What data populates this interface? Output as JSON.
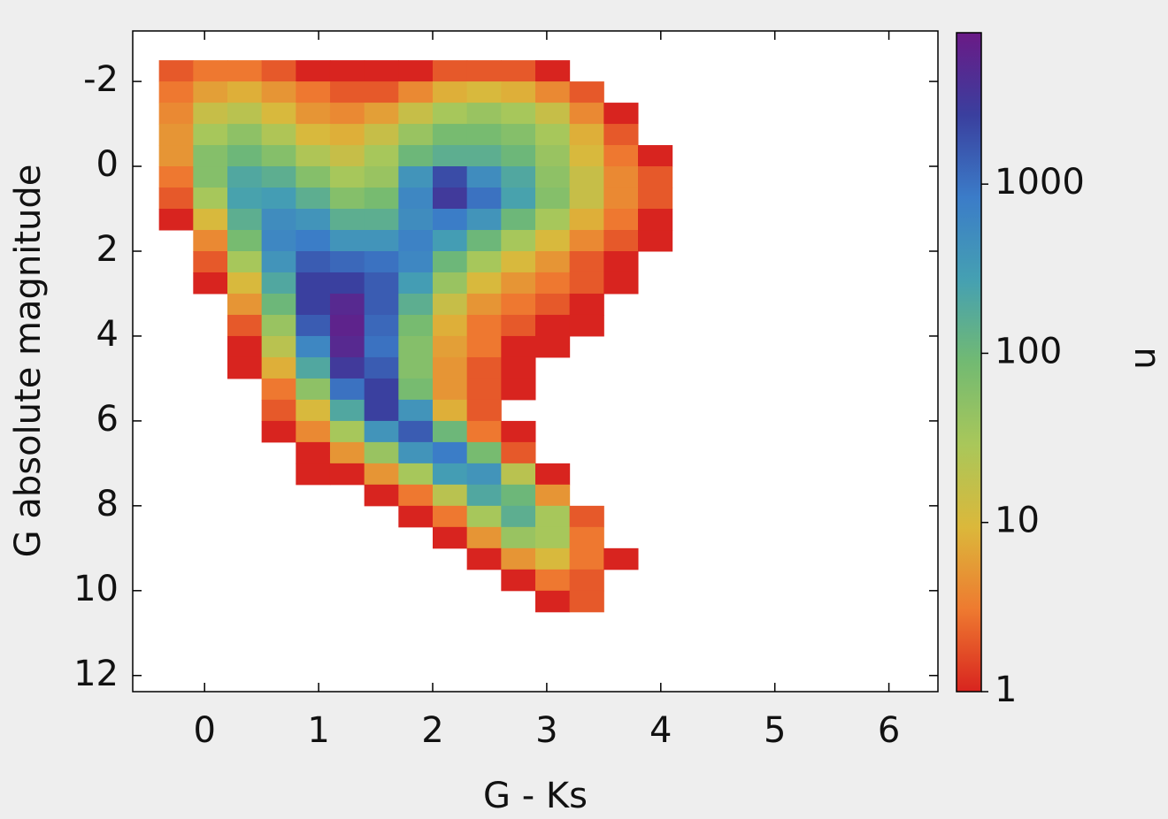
{
  "chart_data": {
    "type": "heatmap",
    "xlabel": "G - Ks",
    "ylabel": "G absolute magnitude",
    "colorbar_label": "n",
    "xlim": [
      -0.63,
      6.43
    ],
    "ylim": [
      -3.19,
      12.38
    ],
    "y_inverted": true,
    "xticks": [
      0,
      1,
      2,
      3,
      4,
      5,
      6
    ],
    "yticks": [
      -2,
      0,
      2,
      4,
      6,
      8,
      10,
      12
    ],
    "zlim": [
      1,
      7850
    ],
    "zscale": "log",
    "zticks": [
      1,
      10,
      100,
      1000
    ],
    "colormap": [
      "#d8241f",
      "#ee7a30",
      "#dbb83b",
      "#a9c75a",
      "#72ba72",
      "#45a0b2",
      "#3b7cc8",
      "#3a3f9e",
      "#6a1a86"
    ],
    "xbins": [
      -0.4,
      -0.1,
      0.2,
      0.5,
      0.8,
      1.1,
      1.4,
      1.7,
      2.0,
      2.3,
      2.6,
      2.9,
      3.2,
      3.5,
      3.8,
      4.1
    ],
    "ybins": [
      -2.5,
      -2.0,
      -1.5,
      -1.0,
      -0.5,
      0.0,
      0.5,
      1.0,
      1.5,
      2.0,
      2.5,
      3.0,
      3.5,
      4.0,
      4.5,
      5.0,
      5.5,
      6.0,
      6.5,
      7.0,
      7.5,
      8.0,
      8.5,
      9.0,
      9.5,
      10.0,
      10.5
    ],
    "counts": [
      [
        2,
        3,
        3,
        2,
        1,
        1,
        1,
        1,
        2,
        2,
        2,
        1,
        null,
        null,
        null
      ],
      [
        3,
        6,
        8,
        5,
        3,
        2,
        2,
        4,
        8,
        10,
        8,
        4,
        2,
        null,
        null
      ],
      [
        4,
        15,
        20,
        10,
        5,
        4,
        6,
        15,
        30,
        40,
        30,
        15,
        4,
        1,
        null
      ],
      [
        5,
        30,
        50,
        25,
        10,
        8,
        15,
        40,
        80,
        80,
        60,
        30,
        8,
        2,
        null
      ],
      [
        5,
        60,
        100,
        60,
        25,
        15,
        30,
        100,
        150,
        150,
        100,
        40,
        10,
        3,
        1
      ],
      [
        3,
        60,
        200,
        150,
        60,
        30,
        40,
        400,
        2000,
        500,
        200,
        50,
        15,
        4,
        2
      ],
      [
        2,
        30,
        250,
        300,
        150,
        60,
        80,
        600,
        3000,
        1000,
        250,
        60,
        15,
        4,
        2
      ],
      [
        1,
        10,
        150,
        500,
        400,
        150,
        150,
        500,
        800,
        400,
        100,
        30,
        8,
        3,
        1
      ],
      [
        null,
        4,
        80,
        600,
        800,
        400,
        400,
        700,
        300,
        100,
        30,
        10,
        4,
        2,
        1
      ],
      [
        null,
        2,
        30,
        400,
        1500,
        1200,
        1000,
        600,
        100,
        30,
        10,
        5,
        2,
        1,
        null
      ],
      [
        null,
        1,
        10,
        200,
        2500,
        2500,
        1500,
        300,
        40,
        10,
        5,
        3,
        2,
        1,
        null
      ],
      [
        null,
        null,
        5,
        100,
        2500,
        5000,
        1500,
        150,
        15,
        5,
        3,
        2,
        1,
        null,
        null
      ],
      [
        null,
        null,
        2,
        40,
        1500,
        6000,
        1200,
        80,
        8,
        3,
        2,
        1,
        1,
        null,
        null
      ],
      [
        null,
        null,
        1,
        20,
        600,
        5000,
        1000,
        60,
        6,
        3,
        1,
        1,
        null,
        null,
        null
      ],
      [
        null,
        null,
        1,
        8,
        200,
        3000,
        1500,
        60,
        5,
        2,
        1,
        null,
        null,
        null,
        null
      ],
      [
        null,
        null,
        null,
        3,
        50,
        1000,
        2500,
        80,
        5,
        2,
        1,
        null,
        null,
        null,
        null
      ],
      [
        null,
        null,
        null,
        2,
        10,
        200,
        2500,
        400,
        8,
        2,
        null,
        null,
        null,
        null,
        null
      ],
      [
        null,
        null,
        null,
        1,
        4,
        30,
        400,
        1500,
        100,
        3,
        1,
        null,
        null,
        null,
        null
      ],
      [
        null,
        null,
        null,
        null,
        1,
        5,
        40,
        400,
        800,
        80,
        2,
        null,
        null,
        null,
        null
      ],
      [
        null,
        null,
        null,
        null,
        1,
        1,
        5,
        30,
        300,
        400,
        20,
        1,
        null,
        null,
        null
      ],
      [
        null,
        null,
        null,
        null,
        null,
        null,
        1,
        3,
        20,
        200,
        100,
        5,
        null,
        null,
        null
      ],
      [
        null,
        null,
        null,
        null,
        null,
        null,
        null,
        1,
        3,
        30,
        150,
        30,
        2,
        null,
        null
      ],
      [
        null,
        null,
        null,
        null,
        null,
        null,
        null,
        null,
        1,
        5,
        40,
        30,
        3,
        null,
        null
      ],
      [
        null,
        null,
        null,
        null,
        null,
        null,
        null,
        null,
        null,
        1,
        5,
        10,
        3,
        1,
        null
      ],
      [
        null,
        null,
        null,
        null,
        null,
        null,
        null,
        null,
        null,
        null,
        1,
        3,
        2,
        null,
        null
      ],
      [
        null,
        null,
        null,
        null,
        null,
        null,
        null,
        null,
        null,
        null,
        null,
        1,
        2,
        null,
        null
      ]
    ]
  }
}
